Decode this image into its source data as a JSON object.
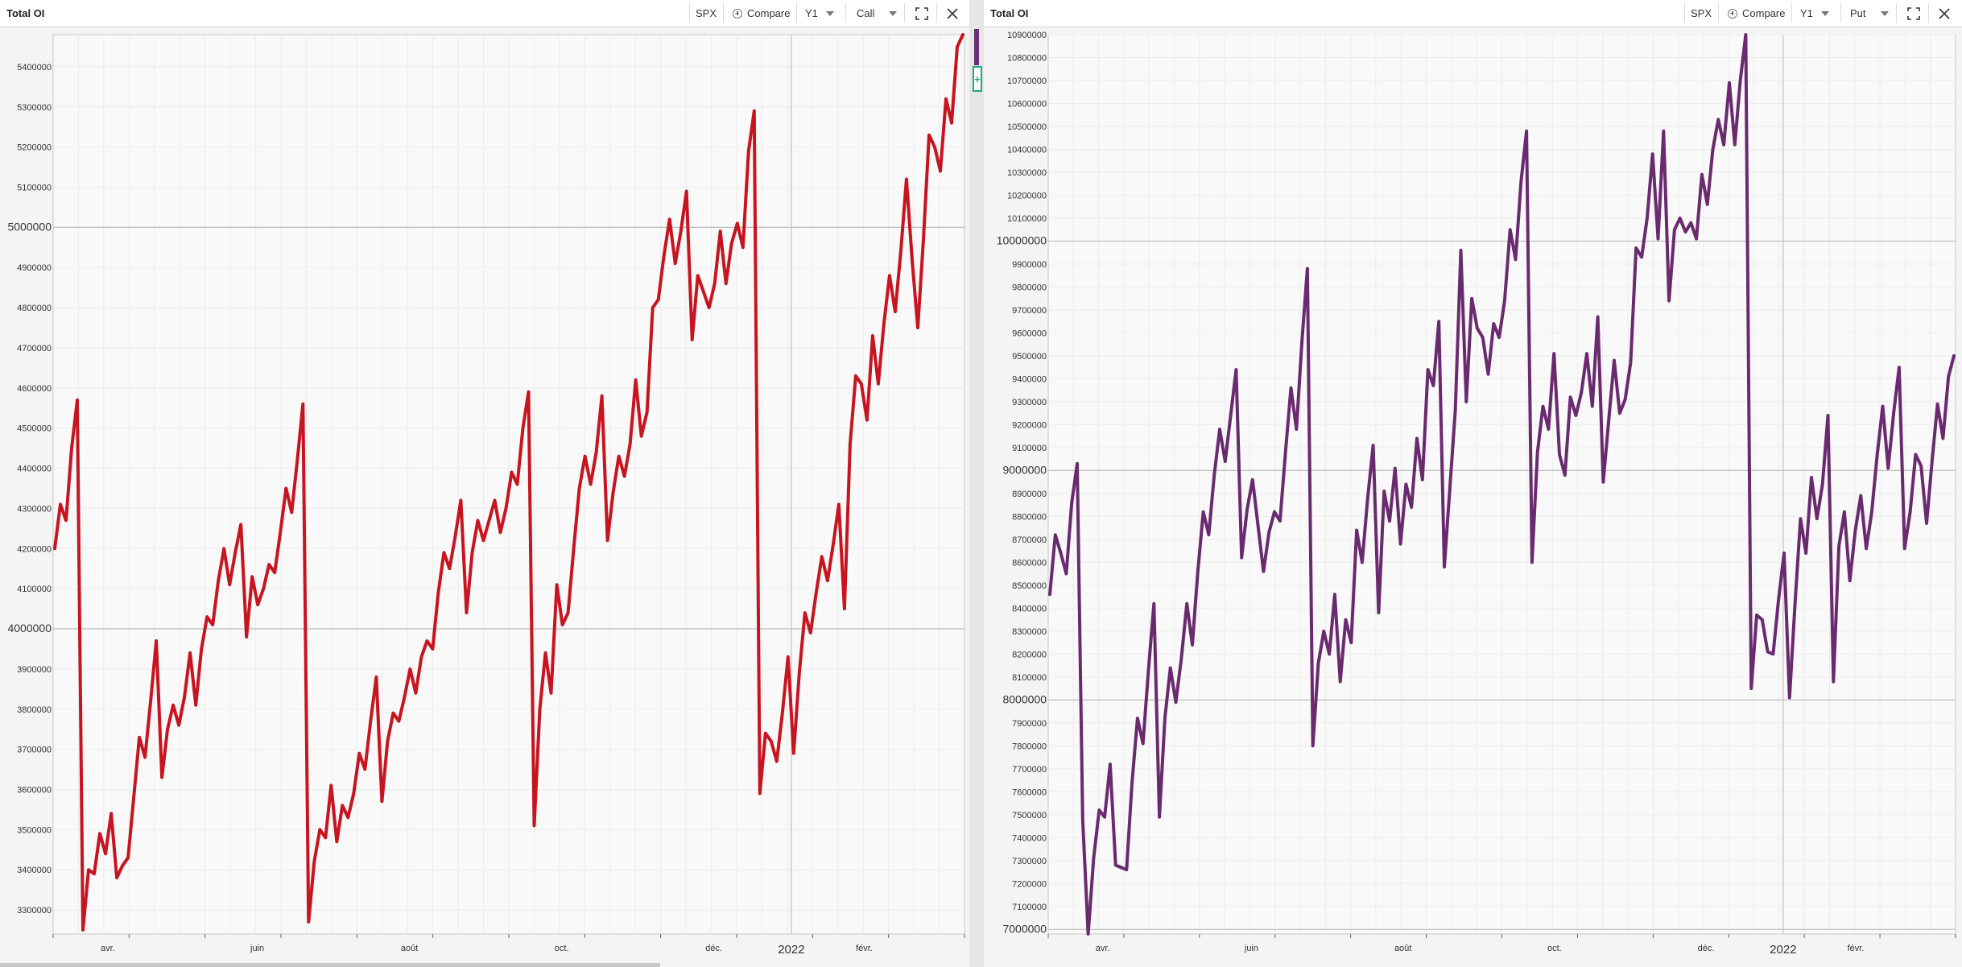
{
  "left": {
    "title": "Total OI",
    "toolbar": {
      "symbol": "SPX",
      "compare": "Compare",
      "period": "Y1",
      "type": "Call"
    },
    "chart_data": {
      "type": "line",
      "title": "Total OI",
      "series": [
        {
          "name": "Call",
          "color": "#c8141e"
        }
      ],
      "ylim": [
        3240000,
        5480000
      ],
      "y_ticks": [
        "3300000",
        "3400000",
        "3500000",
        "3600000",
        "3700000",
        "3800000",
        "3900000",
        "4000000",
        "4100000",
        "4200000",
        "4300000",
        "4400000",
        "4500000",
        "4600000",
        "4700000",
        "4800000",
        "4900000",
        "5000000",
        "5100000",
        "5200000",
        "5300000",
        "5400000"
      ],
      "y_tick_values": [
        3300000,
        3400000,
        3500000,
        3600000,
        3700000,
        3800000,
        3900000,
        4000000,
        4100000,
        4200000,
        4300000,
        4400000,
        4500000,
        4600000,
        4700000,
        4800000,
        4900000,
        5000000,
        5100000,
        5200000,
        5300000,
        5400000
      ],
      "y_major": [
        4000000,
        5000000
      ],
      "x_labels": [
        "avr.",
        "juin",
        "août",
        "oct.",
        "déc.",
        "2022",
        "févr."
      ],
      "x_label_fracs": [
        0.06,
        0.224,
        0.391,
        0.558,
        0.725,
        0.81,
        0.89
      ],
      "grid": true,
      "values": [
        4200000,
        4310000,
        4270000,
        4450000,
        4570000,
        3250000,
        3400000,
        3390000,
        3490000,
        3440000,
        3540000,
        3380000,
        3410000,
        3430000,
        3580000,
        3730000,
        3680000,
        3820000,
        3970000,
        3630000,
        3750000,
        3810000,
        3760000,
        3830000,
        3940000,
        3810000,
        3950000,
        4030000,
        4010000,
        4120000,
        4200000,
        4110000,
        4190000,
        4260000,
        3980000,
        4130000,
        4060000,
        4100000,
        4160000,
        4140000,
        4240000,
        4350000,
        4290000,
        4420000,
        4560000,
        3270000,
        3420000,
        3500000,
        3480000,
        3610000,
        3470000,
        3560000,
        3530000,
        3590000,
        3690000,
        3650000,
        3770000,
        3880000,
        3570000,
        3720000,
        3790000,
        3770000,
        3830000,
        3900000,
        3840000,
        3930000,
        3970000,
        3950000,
        4090000,
        4190000,
        4150000,
        4230000,
        4320000,
        4040000,
        4190000,
        4270000,
        4220000,
        4270000,
        4320000,
        4240000,
        4300000,
        4390000,
        4360000,
        4500000,
        4590000,
        3510000,
        3800000,
        3940000,
        3840000,
        4110000,
        4010000,
        4040000,
        4200000,
        4350000,
        4430000,
        4360000,
        4440000,
        4580000,
        4220000,
        4340000,
        4430000,
        4380000,
        4460000,
        4620000,
        4480000,
        4540000,
        4800000,
        4820000,
        4930000,
        5020000,
        4910000,
        4990000,
        5090000,
        4720000,
        4880000,
        4840000,
        4800000,
        4860000,
        4990000,
        4860000,
        4960000,
        5010000,
        4950000,
        5190000,
        5290000,
        3590000,
        3740000,
        3720000,
        3670000,
        3790000,
        3930000,
        3690000,
        3890000,
        4040000,
        3990000,
        4090000,
        4180000,
        4120000,
        4210000,
        4310000,
        4050000,
        4460000,
        4630000,
        4610000,
        4520000,
        4730000,
        4610000,
        4760000,
        4880000,
        4790000,
        4940000,
        5120000,
        4920000,
        4750000,
        4970000,
        5230000,
        5200000,
        5140000,
        5320000,
        5260000,
        5450000,
        5480000
      ]
    }
  },
  "right": {
    "title": "Total OI",
    "toolbar": {
      "symbol": "SPX",
      "compare": "Compare",
      "period": "Y1",
      "type": "Put"
    },
    "chart_data": {
      "type": "line",
      "title": "Total OI",
      "series": [
        {
          "name": "Put",
          "color": "#6a2a6f"
        }
      ],
      "ylim": [
        6980000,
        10900000
      ],
      "y_ticks": [
        "7000000",
        "7100000",
        "7200000",
        "7300000",
        "7400000",
        "7500000",
        "7600000",
        "7700000",
        "7800000",
        "7900000",
        "8000000",
        "8100000",
        "8200000",
        "8300000",
        "8400000",
        "8500000",
        "8600000",
        "8700000",
        "8800000",
        "8900000",
        "9000000",
        "9100000",
        "9200000",
        "9300000",
        "9400000",
        "9500000",
        "9600000",
        "9700000",
        "9800000",
        "9900000",
        "10000000",
        "10100000",
        "10200000",
        "10300000",
        "10400000",
        "10500000",
        "10600000",
        "10700000",
        "10800000",
        "10900000"
      ],
      "y_tick_values": [
        7000000,
        7100000,
        7200000,
        7300000,
        7400000,
        7500000,
        7600000,
        7700000,
        7800000,
        7900000,
        8000000,
        8100000,
        8200000,
        8300000,
        8400000,
        8500000,
        8600000,
        8700000,
        8800000,
        8900000,
        9000000,
        9100000,
        9200000,
        9300000,
        9400000,
        9500000,
        9600000,
        9700000,
        9800000,
        9900000,
        10000000,
        10100000,
        10200000,
        10300000,
        10400000,
        10500000,
        10600000,
        10700000,
        10800000,
        10900000
      ],
      "y_major": [
        7000000,
        8000000,
        9000000,
        10000000
      ],
      "x_labels": [
        "avr.",
        "juin",
        "août",
        "oct.",
        "déc.",
        "2022",
        "févr."
      ],
      "x_label_fracs": [
        0.06,
        0.224,
        0.391,
        0.558,
        0.725,
        0.81,
        0.89
      ],
      "grid": true,
      "values": [
        8460000,
        8720000,
        8640000,
        8550000,
        8860000,
        9030000,
        7480000,
        6980000,
        7310000,
        7520000,
        7490000,
        7720000,
        7280000,
        7270000,
        7260000,
        7640000,
        7920000,
        7810000,
        8130000,
        8420000,
        7490000,
        7920000,
        8140000,
        7990000,
        8180000,
        8420000,
        8240000,
        8560000,
        8820000,
        8720000,
        8980000,
        9180000,
        9040000,
        9240000,
        9440000,
        8620000,
        8830000,
        8960000,
        8760000,
        8560000,
        8730000,
        8820000,
        8780000,
        9080000,
        9360000,
        9180000,
        9560000,
        9880000,
        7800000,
        8160000,
        8300000,
        8200000,
        8460000,
        8080000,
        8350000,
        8250000,
        8740000,
        8600000,
        8880000,
        9110000,
        8380000,
        8910000,
        8780000,
        9010000,
        8680000,
        8940000,
        8840000,
        9140000,
        8960000,
        9440000,
        9370000,
        9650000,
        8580000,
        8920000,
        9260000,
        9960000,
        9300000,
        9750000,
        9620000,
        9580000,
        9420000,
        9640000,
        9580000,
        9740000,
        10050000,
        9920000,
        10260000,
        10480000,
        8600000,
        9080000,
        9280000,
        9180000,
        9510000,
        9070000,
        8980000,
        9320000,
        9240000,
        9340000,
        9510000,
        9280000,
        9670000,
        8950000,
        9220000,
        9480000,
        9250000,
        9310000,
        9470000,
        9970000,
        9930000,
        10100000,
        10380000,
        10010000,
        10480000,
        9740000,
        10050000,
        10100000,
        10040000,
        10080000,
        10010000,
        10290000,
        10160000,
        10400000,
        10530000,
        10420000,
        10690000,
        10420000,
        10700000,
        10900000,
        8050000,
        8370000,
        8350000,
        8210000,
        8200000,
        8440000,
        8640000,
        8010000,
        8420000,
        8790000,
        8640000,
        8970000,
        8790000,
        8940000,
        9240000,
        8080000,
        8670000,
        8820000,
        8520000,
        8740000,
        8890000,
        8660000,
        8820000,
        9070000,
        9280000,
        9010000,
        9250000,
        9450000,
        8660000,
        8820000,
        9070000,
        9020000,
        8770000,
        9040000,
        9290000,
        9140000,
        9410000,
        9500000
      ]
    }
  }
}
